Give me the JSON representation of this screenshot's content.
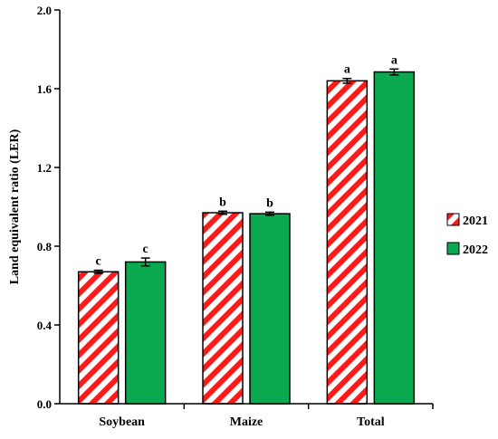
{
  "chart_data": {
    "type": "bar",
    "title": "",
    "xlabel": "",
    "ylabel": "Land equivalent ratio (LER)",
    "ylim": [
      0,
      2.0
    ],
    "yticks": [
      "0.0",
      "0.4",
      "0.8",
      "1.2",
      "1.6",
      "2.0"
    ],
    "categories": [
      "Soybean",
      "Maize",
      "Total"
    ],
    "grid": false,
    "legend_position": "right",
    "series": [
      {
        "name": "2021",
        "pattern": "red-white-diagonal-stripes",
        "color": "#ff1a1a",
        "values": [
          0.67,
          0.97,
          1.64
        ],
        "errors": [
          0.008,
          0.008,
          0.012
        ],
        "letters": [
          "c",
          "b",
          "a"
        ]
      },
      {
        "name": "2022",
        "pattern": "solid",
        "color": "#0aa84f",
        "values": [
          0.72,
          0.965,
          1.685
        ],
        "errors": [
          0.02,
          0.008,
          0.015
        ],
        "letters": [
          "c",
          "b",
          "a"
        ]
      }
    ]
  }
}
